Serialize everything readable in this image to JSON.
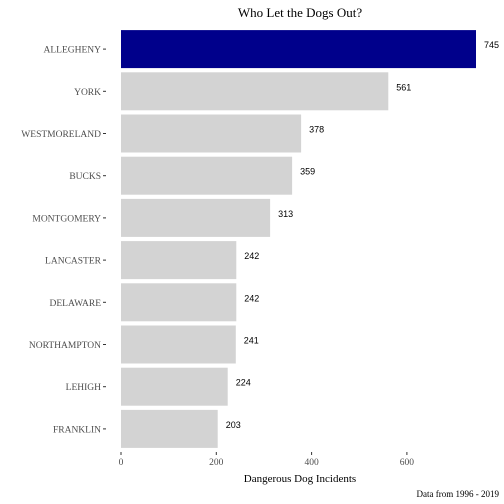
{
  "chart_data": {
    "type": "bar",
    "orientation": "horizontal",
    "title": "Who Let the Dogs Out?",
    "xlabel": "Dangerous Dog Incidents",
    "ylabel": "",
    "caption": "Data from 1996 - 2019",
    "categories": [
      "ALLEGHENY",
      "YORK",
      "WESTMORELAND",
      "BUCKS",
      "MONTGOMERY",
      "LANCASTER",
      "DELAWARE",
      "NORTHAMPTON",
      "LEHIGH",
      "FRANKLIN"
    ],
    "values": [
      745,
      561,
      378,
      359,
      313,
      242,
      242,
      241,
      224,
      203
    ],
    "value_labels": [
      "745",
      "561",
      "378",
      "359",
      "313",
      "242",
      "242",
      "241",
      "224",
      "203"
    ],
    "highlight": "ALLEGHENY",
    "xlim": [
      0,
      760
    ],
    "xticks": [
      0,
      200,
      400,
      600
    ],
    "grid": false,
    "legend": "none",
    "colors": {
      "highlight": "#00008b",
      "default": "#d3d3d3",
      "text": "#000000",
      "axis_text": "#4d4d4d"
    }
  }
}
